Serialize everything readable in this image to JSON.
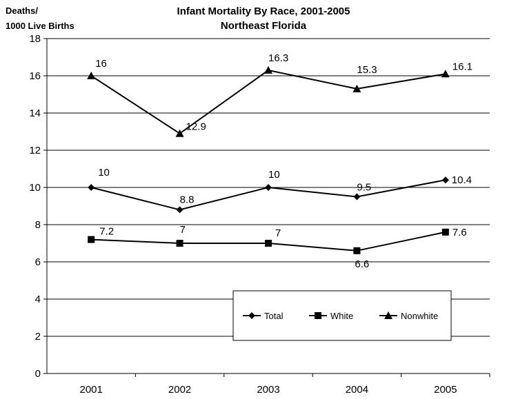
{
  "chart_data": {
    "type": "line",
    "title": "Infant Mortality By Race, 2001-2005",
    "subtitle": "Northeast Florida",
    "ylabel_line1": "Deaths/",
    "ylabel_line2": "1000 Live Births",
    "xlabel": "",
    "categories": [
      "2001",
      "2002",
      "2003",
      "2004",
      "2005"
    ],
    "ylim": [
      0,
      18
    ],
    "yticks": [
      0,
      2,
      4,
      6,
      8,
      10,
      12,
      14,
      16,
      18
    ],
    "grid": true,
    "legend_position": "bottom-right",
    "series": [
      {
        "name": "Total",
        "marker": "diamond",
        "values": [
          10,
          8.8,
          10,
          9.5,
          10.4
        ],
        "labels": [
          "10",
          "8.8",
          "10",
          "9.5",
          "10.4"
        ]
      },
      {
        "name": "White",
        "marker": "square",
        "values": [
          7.2,
          7,
          7,
          6.6,
          7.6
        ],
        "labels": [
          "7.2",
          "7",
          "7",
          "6.6",
          "7.6"
        ]
      },
      {
        "name": "Nonwhite",
        "marker": "triangle",
        "values": [
          16,
          12.9,
          16.3,
          15.3,
          16.1
        ],
        "labels": [
          "16",
          "12.9",
          "16.3",
          "15.3",
          "16.1"
        ]
      }
    ],
    "colors": {
      "line": "#000000",
      "grid": "#000000",
      "background": "#ffffff"
    }
  }
}
